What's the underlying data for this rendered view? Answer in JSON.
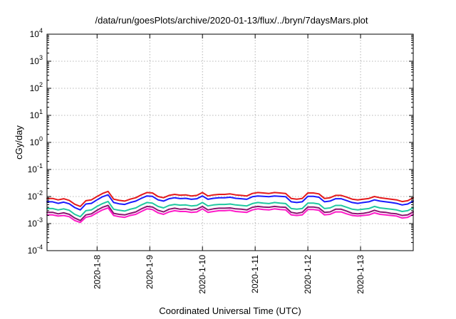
{
  "chart_data": {
    "type": "line",
    "title": "/data/run/goesPlots/archive/2020-01-13/flux/../bryn/7daysMars.plot",
    "xlabel": "Coordinated Universal Time (UTC)",
    "ylabel": "cGy/day",
    "yscale": "log",
    "ylim_exp": [
      -4,
      4
    ],
    "yticks": [
      {
        "base": "10",
        "exp": "4"
      },
      {
        "base": "10",
        "exp": "3"
      },
      {
        "base": "10",
        "exp": "2"
      },
      {
        "base": "10",
        "exp": "1"
      },
      {
        "base": "10",
        "exp": "0"
      },
      {
        "base": "10",
        "exp": "-1"
      },
      {
        "base": "10",
        "exp": "-2"
      },
      {
        "base": "10",
        "exp": "-3"
      },
      {
        "base": "10",
        "exp": "-4"
      }
    ],
    "xlim_days": [
      0,
      6.95
    ],
    "xticks": [
      {
        "label": "2020-1-8",
        "day": 0.95
      },
      {
        "label": "2020-1-9",
        "day": 1.95
      },
      {
        "label": "2020-1-10",
        "day": 2.95
      },
      {
        "label": "2020-1-11",
        "day": 3.95
      },
      {
        "label": "2020-1-12",
        "day": 4.95
      },
      {
        "label": "2020-1-13",
        "day": 5.95
      }
    ],
    "grid": true,
    "series": [
      {
        "color": "#e41a1c",
        "values": [
          0.0085,
          0.0085,
          0.0075,
          0.0083,
          0.0072,
          0.0052,
          0.0043,
          0.007,
          0.0075,
          0.01,
          0.013,
          0.0155,
          0.008,
          0.0072,
          0.0068,
          0.008,
          0.009,
          0.0115,
          0.014,
          0.0135,
          0.01,
          0.009,
          0.011,
          0.012,
          0.0112,
          0.0115,
          0.0105,
          0.011,
          0.014,
          0.0105,
          0.0115,
          0.012,
          0.012,
          0.0125,
          0.0115,
          0.011,
          0.0105,
          0.013,
          0.014,
          0.0135,
          0.013,
          0.014,
          0.0135,
          0.013,
          0.0085,
          0.008,
          0.0085,
          0.0135,
          0.0135,
          0.0125,
          0.0085,
          0.009,
          0.011,
          0.011,
          0.0095,
          0.008,
          0.0075,
          0.008,
          0.0085,
          0.01,
          0.009,
          0.0085,
          0.008,
          0.0075,
          0.0065,
          0.007,
          0.009
        ]
      },
      {
        "color": "#1a1aff",
        "values": [
          0.0064,
          0.0064,
          0.0056,
          0.0062,
          0.0054,
          0.0039,
          0.0032,
          0.0053,
          0.0056,
          0.0075,
          0.0098,
          0.0116,
          0.006,
          0.0054,
          0.0051,
          0.006,
          0.0068,
          0.0086,
          0.0105,
          0.0101,
          0.0075,
          0.0068,
          0.0083,
          0.009,
          0.0084,
          0.0086,
          0.0079,
          0.0083,
          0.0105,
          0.0079,
          0.0086,
          0.009,
          0.009,
          0.0094,
          0.0086,
          0.0083,
          0.0079,
          0.0098,
          0.0105,
          0.0101,
          0.0098,
          0.0105,
          0.0101,
          0.0098,
          0.0064,
          0.006,
          0.0064,
          0.0101,
          0.0101,
          0.0094,
          0.0064,
          0.0068,
          0.0083,
          0.0083,
          0.0071,
          0.006,
          0.0056,
          0.006,
          0.0064,
          0.0075,
          0.0068,
          0.0064,
          0.006,
          0.0056,
          0.0049,
          0.0053,
          0.0068
        ]
      },
      {
        "color": "#1fc8a0",
        "values": [
          0.0036,
          0.0036,
          0.0032,
          0.0035,
          0.0031,
          0.0022,
          0.0018,
          0.003,
          0.0032,
          0.0043,
          0.0055,
          0.0066,
          0.0034,
          0.0031,
          0.0029,
          0.0034,
          0.0038,
          0.0049,
          0.006,
          0.0057,
          0.0043,
          0.0038,
          0.0047,
          0.0051,
          0.0048,
          0.0049,
          0.0045,
          0.0047,
          0.006,
          0.0045,
          0.0049,
          0.0051,
          0.0051,
          0.0053,
          0.0049,
          0.0047,
          0.0045,
          0.0055,
          0.006,
          0.0057,
          0.0055,
          0.006,
          0.0057,
          0.0055,
          0.0036,
          0.0034,
          0.0036,
          0.0057,
          0.0057,
          0.0053,
          0.0036,
          0.0038,
          0.0047,
          0.0047,
          0.004,
          0.0034,
          0.0032,
          0.0034,
          0.0036,
          0.0043,
          0.0038,
          0.0036,
          0.0034,
          0.0032,
          0.0028,
          0.003,
          0.0038
        ]
      },
      {
        "color": "#8a1570",
        "values": [
          0.0026,
          0.0026,
          0.0023,
          0.0025,
          0.0022,
          0.0016,
          0.0013,
          0.0021,
          0.0023,
          0.0031,
          0.004,
          0.0047,
          0.0024,
          0.0022,
          0.0021,
          0.0024,
          0.0027,
          0.0035,
          0.0043,
          0.0041,
          0.0031,
          0.0027,
          0.0034,
          0.0037,
          0.0034,
          0.0035,
          0.0032,
          0.0034,
          0.0043,
          0.0032,
          0.0035,
          0.0037,
          0.0037,
          0.0038,
          0.0035,
          0.0034,
          0.0032,
          0.004,
          0.0043,
          0.0041,
          0.004,
          0.0043,
          0.0041,
          0.004,
          0.0026,
          0.0024,
          0.0026,
          0.0041,
          0.0041,
          0.0038,
          0.0026,
          0.0027,
          0.0034,
          0.0034,
          0.0029,
          0.0024,
          0.0023,
          0.0024,
          0.0026,
          0.0031,
          0.0027,
          0.0026,
          0.0024,
          0.0023,
          0.002,
          0.0021,
          0.0027
        ]
      },
      {
        "color": "#ff1ac8",
        "values": [
          0.0021,
          0.0021,
          0.0019,
          0.002,
          0.0018,
          0.0013,
          0.0011,
          0.0017,
          0.0019,
          0.0025,
          0.0032,
          0.0038,
          0.002,
          0.0018,
          0.0017,
          0.002,
          0.0022,
          0.0028,
          0.0035,
          0.0033,
          0.0025,
          0.0022,
          0.0027,
          0.003,
          0.0028,
          0.0028,
          0.0026,
          0.0027,
          0.0035,
          0.0026,
          0.0028,
          0.003,
          0.003,
          0.0031,
          0.0028,
          0.0027,
          0.0026,
          0.0032,
          0.0035,
          0.0033,
          0.0032,
          0.0035,
          0.0033,
          0.0032,
          0.0021,
          0.002,
          0.0021,
          0.0033,
          0.0033,
          0.0031,
          0.0021,
          0.0022,
          0.0027,
          0.0027,
          0.0023,
          0.002,
          0.0019,
          0.002,
          0.0021,
          0.0025,
          0.0022,
          0.0021,
          0.002,
          0.0019,
          0.0016,
          0.0017,
          0.0022
        ]
      }
    ]
  }
}
